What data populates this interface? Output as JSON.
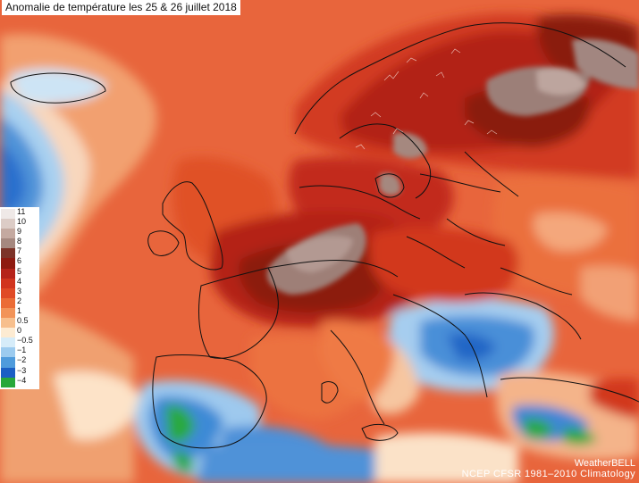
{
  "title": "Anomalie de température les 25 & 26 juillet 2018",
  "legend": {
    "items": [
      {
        "label": "11",
        "color": "#efe9e7"
      },
      {
        "label": "10",
        "color": "#dcccc6"
      },
      {
        "label": "9",
        "color": "#c4a9a0"
      },
      {
        "label": "8",
        "color": "#a5887f"
      },
      {
        "label": "7",
        "color": "#7c3328"
      },
      {
        "label": "6",
        "color": "#8e1a10"
      },
      {
        "label": "5",
        "color": "#b5231a"
      },
      {
        "label": "4",
        "color": "#d1341e"
      },
      {
        "label": "3",
        "color": "#e04a26"
      },
      {
        "label": "2",
        "color": "#eb6c36"
      },
      {
        "label": "1",
        "color": "#f29358"
      },
      {
        "label": "0.5",
        "color": "#f7bf8d"
      },
      {
        "label": "0",
        "color": "#fdebd2"
      },
      {
        "label": "−0.5",
        "color": "#d6ecf9"
      },
      {
        "label": "−1",
        "color": "#9ccbef"
      },
      {
        "label": "−2",
        "color": "#4f9bdc"
      },
      {
        "label": "−3",
        "color": "#1b5fc4"
      },
      {
        "label": "−4",
        "color": "#28a83a"
      }
    ]
  },
  "credits": {
    "brand": "WeatherBELL",
    "source": "NCEP  CFSR  1981–2010  Climatology"
  }
}
